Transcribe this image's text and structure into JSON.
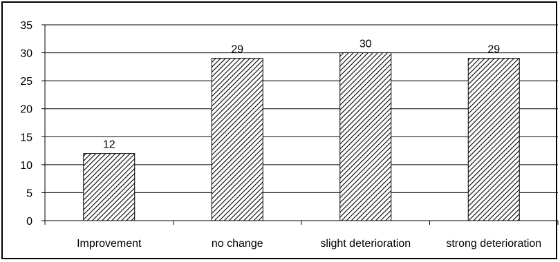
{
  "chart_data": {
    "type": "bar",
    "title": "",
    "xlabel": "",
    "ylabel": "",
    "categories": [
      "Improvement",
      "no change",
      "slight deterioration",
      "strong deterioration"
    ],
    "values": [
      12,
      29,
      30,
      29
    ],
    "data_labels": [
      "12",
      "29",
      "30",
      "29"
    ],
    "ylim": [
      0,
      35
    ],
    "yticks": [
      0,
      5,
      10,
      15,
      20,
      25,
      30,
      35
    ],
    "grid": true,
    "legend": "none",
    "bar_fill": "diagonal-hatch",
    "colors": {
      "bar_hatch": "#000000",
      "bar_background": "#ffffff",
      "gridline": "#000000",
      "frame": "#000000"
    }
  }
}
